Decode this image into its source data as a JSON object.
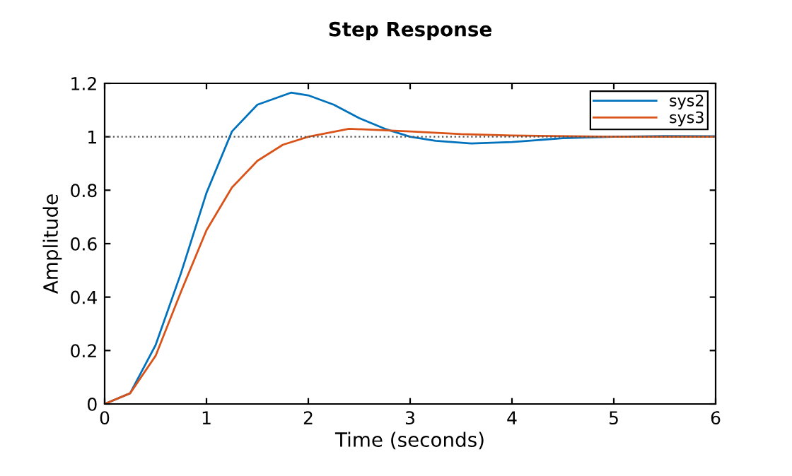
{
  "chart_data": {
    "type": "line",
    "title": "Step Response",
    "xlabel": "Time (seconds)",
    "ylabel": "Amplitude",
    "xlim": [
      0,
      6
    ],
    "xticks": [
      0,
      1,
      2,
      3,
      4,
      5,
      6
    ],
    "ylim": [
      0,
      1.2
    ],
    "yticks": [
      0,
      0.2,
      0.4,
      0.6,
      0.8,
      1,
      1.2
    ],
    "series": [
      {
        "name": "sys2",
        "color": "#0072bd",
        "x": [
          0,
          0.25,
          0.5,
          0.75,
          1,
          1.25,
          1.5,
          1.83,
          2,
          2.25,
          2.5,
          2.75,
          3,
          3.25,
          3.6,
          4,
          4.5,
          5,
          5.5,
          6
        ],
        "values": [
          0,
          0.04,
          0.22,
          0.49,
          0.79,
          1.02,
          1.12,
          1.165,
          1.155,
          1.12,
          1.07,
          1.03,
          1.0,
          0.985,
          0.975,
          0.98,
          0.995,
          1.0,
          1.003,
          1.002
        ]
      },
      {
        "name": "sys3",
        "color": "#d95319",
        "x": [
          0,
          0.25,
          0.5,
          0.75,
          1,
          1.25,
          1.5,
          1.75,
          2,
          2.4,
          3,
          3.5,
          4,
          5,
          6
        ],
        "values": [
          0,
          0.04,
          0.18,
          0.42,
          0.65,
          0.81,
          0.91,
          0.97,
          1.0,
          1.03,
          1.02,
          1.01,
          1.005,
          1.0,
          1.0
        ]
      }
    ],
    "ref_lines": [
      {
        "axis": "y",
        "value": 1,
        "color": "#555555",
        "line_style": "dotted"
      }
    ],
    "legend": "top right",
    "grid": false,
    "marker": "none",
    "line_style": "solid"
  }
}
